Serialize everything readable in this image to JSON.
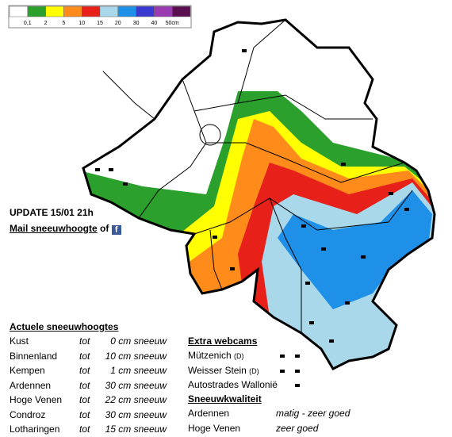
{
  "legend": {
    "colors": [
      "#ffffff",
      "#2ca02c",
      "#ffff00",
      "#ff8c1a",
      "#e8201a",
      "#a8d8ea",
      "#1e90e8",
      "#3a3ad0",
      "#9a3ab0",
      "#5a1050"
    ],
    "labels": [
      "0,1",
      "2",
      "5",
      "10",
      "15",
      "20",
      "30",
      "40",
      "50cm"
    ]
  },
  "update": "UPDATE 15/01 21h",
  "mail": {
    "link": "Mail sneeuwhoogte",
    "of": "of",
    "icon": "f"
  },
  "snow_depths": {
    "title": "Actuele sneeuwhoogtes",
    "rows": [
      [
        "Kust",
        "tot",
        "0 cm sneeuw"
      ],
      [
        "Binnenland",
        "tot",
        "10 cm sneeuw"
      ],
      [
        "Kempen",
        "tot",
        "1 cm sneeuw"
      ],
      [
        "Ardennen",
        "tot",
        "30 cm sneeuw"
      ],
      [
        "Hoge Venen",
        "tot",
        "22 cm sneeuw"
      ],
      [
        "Condroz",
        "tot",
        "30 cm sneeuw"
      ],
      [
        "Lotharingen",
        "tot",
        "15 cm sneeuw"
      ]
    ]
  },
  "webcams": {
    "title": "Extra webcams",
    "items": [
      {
        "name": "Mützenich",
        "suffix": "(D)"
      },
      {
        "name": "Weisser Stein",
        "suffix": "(D)"
      },
      {
        "name": "Autostrades Wallonië"
      }
    ]
  },
  "quality": {
    "title": "Sneeuwkwaliteit",
    "rows": [
      [
        "Ardennen",
        "matig - zeer goed"
      ],
      [
        "Hoge Venen",
        "zeer goed"
      ]
    ]
  }
}
